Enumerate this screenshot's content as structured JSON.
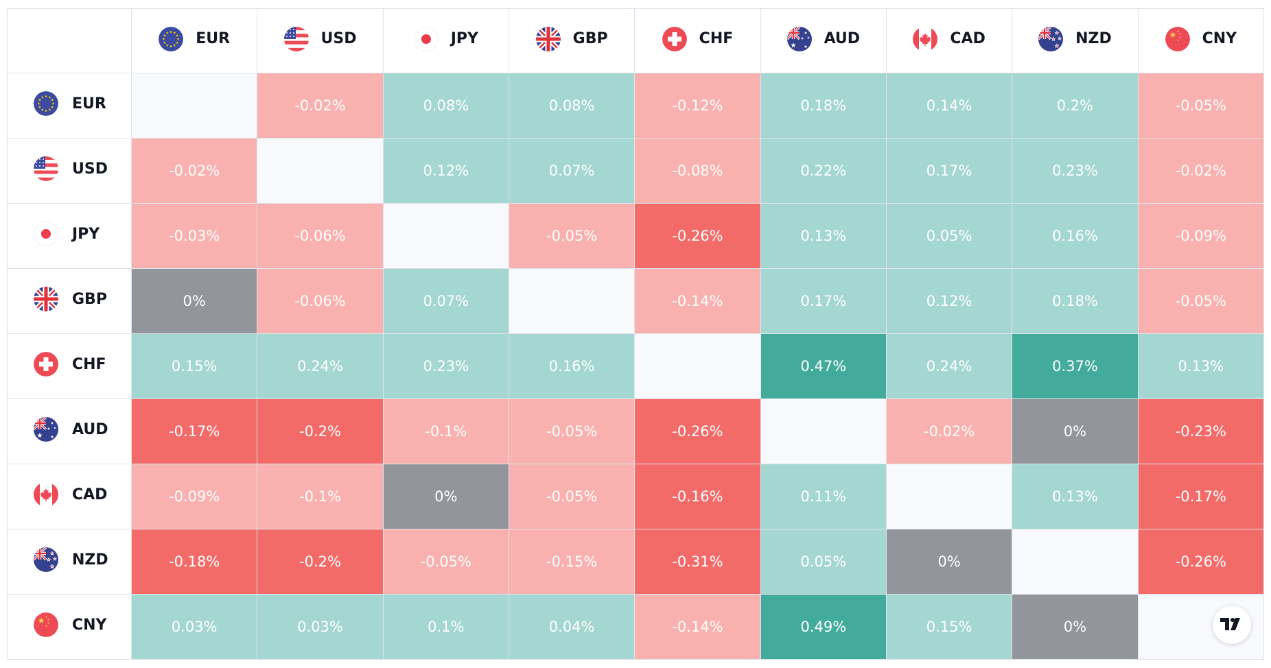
{
  "currencies": [
    "EUR",
    "USD",
    "JPY",
    "GBP",
    "CHF",
    "AUD",
    "CAD",
    "NZD",
    "CNY"
  ],
  "flag_icons": [
    "eu-flag-icon",
    "us-flag-icon",
    "jp-flag-icon",
    "gb-flag-icon",
    "ch-flag-icon",
    "au-flag-icon",
    "ca-flag-icon",
    "nz-flag-icon",
    "cn-flag-icon"
  ],
  "colors": {
    "strong_positive": "#42ab9c",
    "positive": "#a4d7d1",
    "neutral": "#93959d",
    "negative": "#f9b1af",
    "strong_negative": "#f36b68",
    "diagonal": "#f8f9fc",
    "grid_line": "#e0e3eb",
    "header_text": "#131722"
  },
  "chart_data": {
    "type": "heatmap",
    "rows": [
      "EUR",
      "USD",
      "JPY",
      "GBP",
      "CHF",
      "AUD",
      "CAD",
      "NZD",
      "CNY"
    ],
    "columns": [
      "EUR",
      "USD",
      "JPY",
      "GBP",
      "CHF",
      "AUD",
      "CAD",
      "NZD",
      "CNY"
    ],
    "labels": [
      [
        "",
        "-0.02%",
        "0.08%",
        "0.08%",
        "-0.12%",
        "0.18%",
        "0.14%",
        "0.2%",
        "-0.05%"
      ],
      [
        "-0.02%",
        "",
        "0.12%",
        "0.07%",
        "-0.08%",
        "0.22%",
        "0.17%",
        "0.23%",
        "-0.02%"
      ],
      [
        "-0.03%",
        "-0.06%",
        "",
        "-0.05%",
        "-0.26%",
        "0.13%",
        "0.05%",
        "0.16%",
        "-0.09%"
      ],
      [
        "0%",
        "-0.06%",
        "0.07%",
        "",
        "-0.14%",
        "0.17%",
        "0.12%",
        "0.18%",
        "-0.05%"
      ],
      [
        "0.15%",
        "0.24%",
        "0.23%",
        "0.16%",
        "",
        "0.47%",
        "0.24%",
        "0.37%",
        "0.13%"
      ],
      [
        "-0.17%",
        "-0.2%",
        "-0.1%",
        "-0.05%",
        "-0.26%",
        "",
        "-0.02%",
        "0%",
        "-0.23%"
      ],
      [
        "-0.09%",
        "-0.1%",
        "0%",
        "-0.05%",
        "-0.16%",
        "0.11%",
        "",
        "0.13%",
        "-0.17%"
      ],
      [
        "-0.18%",
        "-0.2%",
        "-0.05%",
        "-0.15%",
        "-0.31%",
        "0.05%",
        "0%",
        "",
        "-0.26%"
      ],
      [
        "0.03%",
        "0.03%",
        "0.1%",
        "0.04%",
        "-0.14%",
        "0.49%",
        "0.15%",
        "0%",
        ""
      ]
    ],
    "levels": [
      [
        "diagonal",
        "negative",
        "positive",
        "positive",
        "negative",
        "positive",
        "positive",
        "positive",
        "negative"
      ],
      [
        "negative",
        "diagonal",
        "positive",
        "positive",
        "negative",
        "positive",
        "positive",
        "positive",
        "negative"
      ],
      [
        "negative",
        "negative",
        "diagonal",
        "negative",
        "strong_negative",
        "positive",
        "positive",
        "positive",
        "negative"
      ],
      [
        "neutral",
        "negative",
        "positive",
        "diagonal",
        "negative",
        "positive",
        "positive",
        "positive",
        "negative"
      ],
      [
        "positive",
        "positive",
        "positive",
        "positive",
        "diagonal",
        "strong_positive",
        "positive",
        "strong_positive",
        "positive"
      ],
      [
        "strong_negative",
        "strong_negative",
        "negative",
        "negative",
        "strong_negative",
        "diagonal",
        "negative",
        "neutral",
        "strong_negative"
      ],
      [
        "negative",
        "negative",
        "neutral",
        "negative",
        "strong_negative",
        "positive",
        "diagonal",
        "positive",
        "strong_negative"
      ],
      [
        "strong_negative",
        "strong_negative",
        "negative",
        "negative",
        "strong_negative",
        "positive",
        "neutral",
        "diagonal",
        "strong_negative"
      ],
      [
        "positive",
        "positive",
        "positive",
        "positive",
        "negative",
        "strong_positive",
        "positive",
        "neutral",
        "diagonal"
      ]
    ]
  },
  "branding": {
    "logo_icon": "tradingview-logo-icon"
  }
}
